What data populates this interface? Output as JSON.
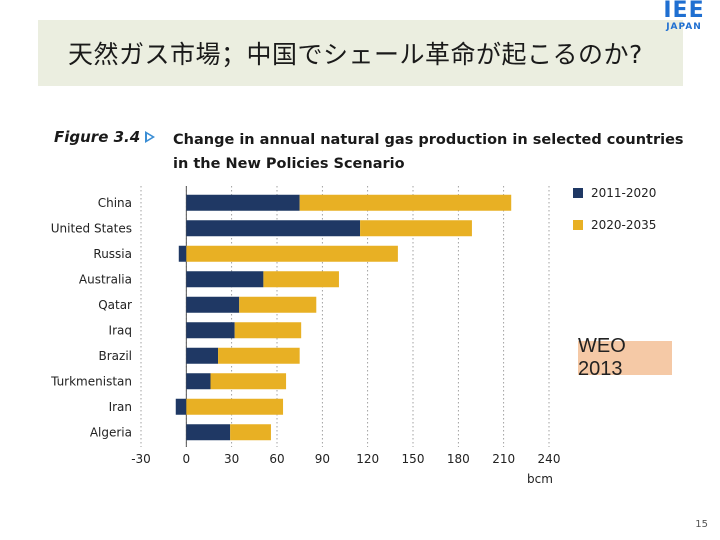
{
  "slide": {
    "title": "天然ガス市場；中国でシェール革命が起こるのか?",
    "logo_main": "IEE",
    "logo_sub": "JAPAN",
    "figure_label": "Figure 3.4",
    "figure_title": "Change in annual natural gas production in selected countries in the New Policies Scenario",
    "badge": "WEO 2013",
    "page_number": "15"
  },
  "chart_data": {
    "type": "bar",
    "orientation": "horizontal",
    "stacked": true,
    "categories": [
      "China",
      "United States",
      "Russia",
      "Australia",
      "Qatar",
      "Iraq",
      "Brazil",
      "Turkmenistan",
      "Iran",
      "Algeria"
    ],
    "series": [
      {
        "name": "2011-2020",
        "color": "#1f3864",
        "values": [
          75,
          115,
          -5,
          51,
          35,
          32,
          21,
          16,
          -7,
          29
        ]
      },
      {
        "name": "2020-2035",
        "color": "#e8b024",
        "values": [
          140,
          74,
          140,
          50,
          51,
          44,
          54,
          50,
          64,
          27
        ]
      }
    ],
    "xlabel": "bcm",
    "xlim": [
      -30,
      240
    ],
    "xticks": [
      -30,
      0,
      30,
      60,
      90,
      120,
      150,
      180,
      210,
      240
    ],
    "grid": "vertical dotted",
    "legend_position": "top-right"
  }
}
